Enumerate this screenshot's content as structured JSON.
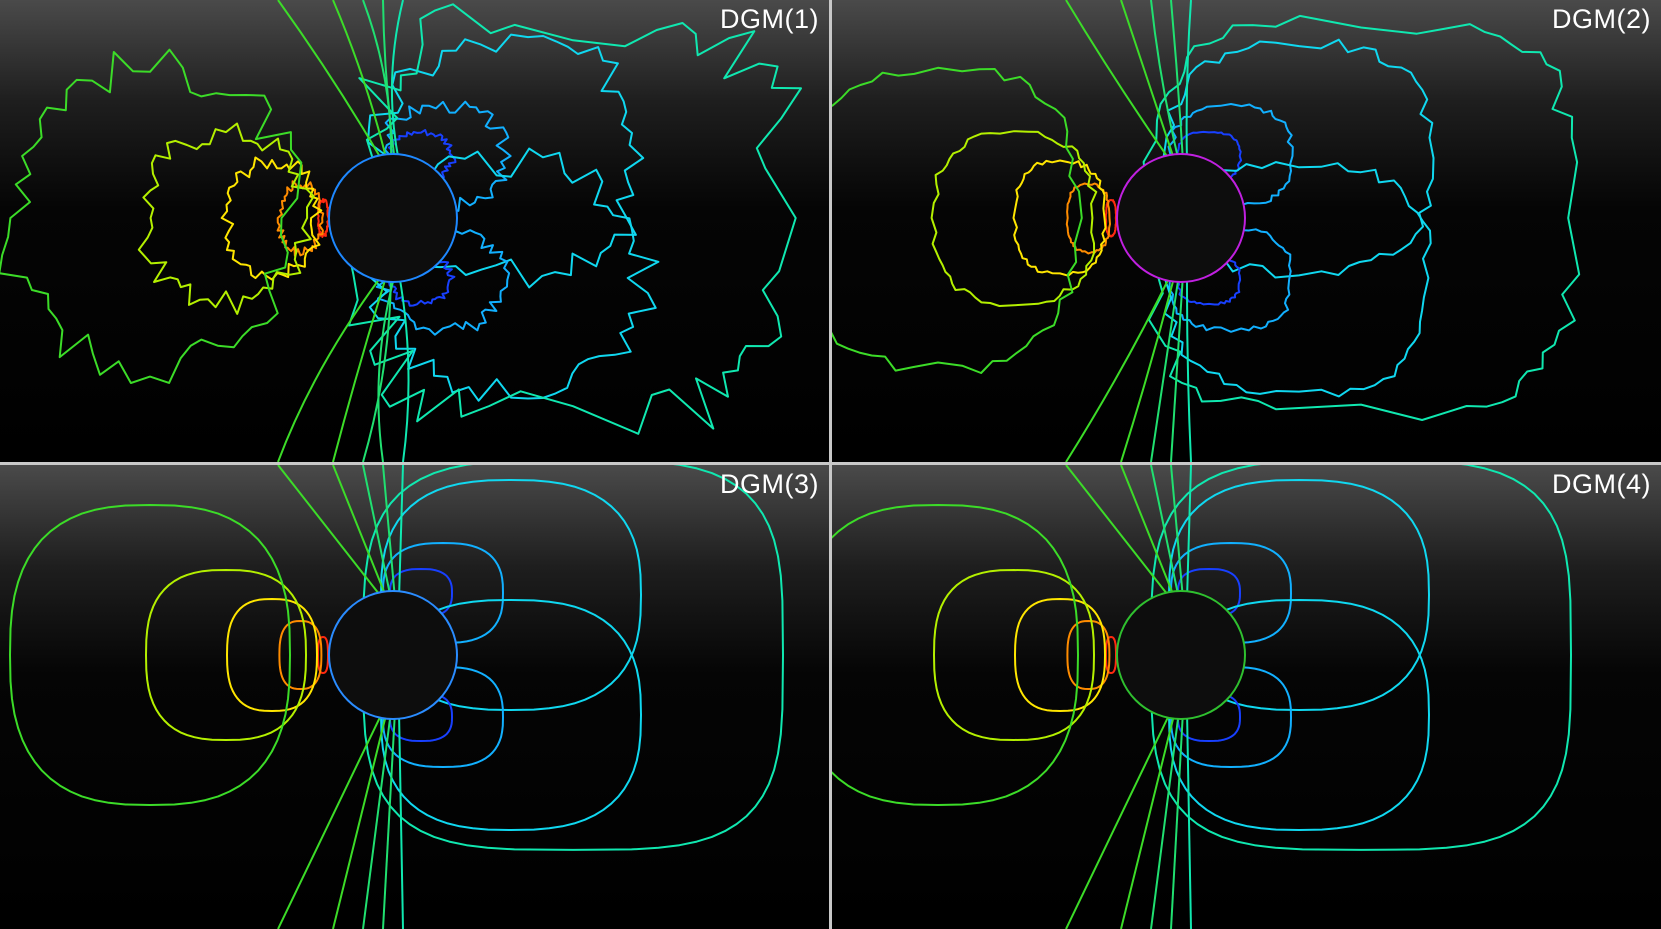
{
  "panels": [
    {
      "label": "DGM(1)",
      "rim_color": "#1e88ff",
      "noise": 1.0
    },
    {
      "label": "DGM(2)",
      "rim_color": "#c020e0",
      "noise": 0.35
    },
    {
      "label": "DGM(3)",
      "rim_color": "#2a8cff",
      "noise": 0.0
    },
    {
      "label": "DGM(4)",
      "rim_color": "#2fc02f",
      "noise": 0.0
    }
  ],
  "contour_colors": {
    "red": "#ff2a10",
    "orange": "#ff8c00",
    "yellow": "#ffe600",
    "yellow_green": "#b4f000",
    "green": "#3cdc28",
    "green2": "#20e070",
    "teal": "#10e8b0",
    "cyan": "#10d8f0",
    "sky": "#12b0ff",
    "blue": "#1a6cff",
    "deep_blue": "#1840ff"
  },
  "background": {
    "top": "#4a4a4a",
    "bottom": "#000000",
    "sphere": "#0d0d0d",
    "separator": "#c8c8c8"
  }
}
